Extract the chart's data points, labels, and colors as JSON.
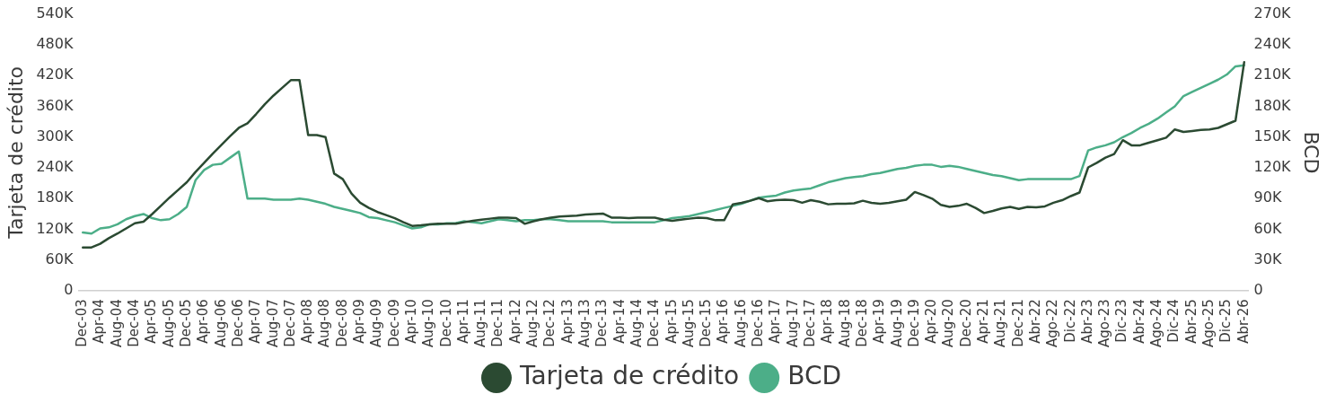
{
  "chart_data": {
    "type": "line",
    "categories": [
      "Dec-03",
      null,
      "Apr-04",
      null,
      "Aug-04",
      null,
      "Dec-04",
      null,
      "Apr-05",
      null,
      "Aug-05",
      null,
      "Dec-05",
      null,
      "Apr-06",
      null,
      "Aug-06",
      null,
      "Dec-06",
      null,
      "Apr-07",
      null,
      "Aug-07",
      null,
      "Dec-07",
      null,
      "Apr-08",
      null,
      "Aug-08",
      null,
      "Dec-08",
      null,
      "Apr-09",
      null,
      "Aug-09",
      null,
      "Dec-09",
      null,
      "Apr-10",
      null,
      "Aug-10",
      null,
      "Dec-10",
      null,
      "Apr-11",
      null,
      "Aug-11",
      null,
      "Dec-11",
      null,
      "Apr-12",
      null,
      "Aug-12",
      null,
      "Dec-12",
      null,
      "Apr-13",
      null,
      "Aug-13",
      null,
      "Dec-13",
      null,
      "Apr-14",
      null,
      "Aug-14",
      null,
      "Dec-14",
      null,
      "Apr-15",
      null,
      "Aug-15",
      null,
      "Dec-15",
      null,
      "Apr-16",
      null,
      "Aug-16",
      null,
      "Dec-16",
      null,
      "Apr-17",
      null,
      "Aug-17",
      null,
      "Dec-17",
      null,
      "Apr-18",
      null,
      "Aug-18",
      null,
      "Dec-18",
      null,
      "Apr-19",
      null,
      "Aug-19",
      null,
      "Dec-19",
      null,
      "Apr-20",
      null,
      "Aug-20",
      null,
      "Dec-20",
      null,
      "Apr-21",
      null,
      "Aug-21",
      null,
      "Dec-21",
      null,
      "Abr-22",
      null,
      "Ago-22",
      null,
      "Dic-22",
      null,
      "Abr-23",
      null,
      "Ago-23",
      null,
      "Dic-23",
      null,
      "Abr-24",
      null,
      "Ago-24",
      null,
      "Dic-24",
      null,
      "Abr-25",
      null,
      "Ago-25",
      null,
      "Dic-25",
      null,
      "Abr-26"
    ],
    "series": [
      {
        "name": "Tarjeta de crédito",
        "color": "#2b4a32",
        "axis": "y",
        "values": [
          85000,
          85000,
          92000,
          103000,
          112000,
          122000,
          132000,
          135000,
          150000,
          166000,
          182000,
          197000,
          212000,
          232000,
          250000,
          268000,
          285000,
          302000,
          318000,
          327000,
          345000,
          364000,
          381000,
          396000,
          411000,
          411000,
          304000,
          304000,
          300000,
          229000,
          218000,
          190000,
          172000,
          162000,
          154000,
          148000,
          142000,
          134000,
          127000,
          128000,
          130000,
          131000,
          131000,
          131000,
          134000,
          137000,
          139000,
          141000,
          143000,
          143000,
          142000,
          131000,
          136000,
          140000,
          143000,
          145000,
          146000,
          147000,
          149000,
          150000,
          151000,
          143000,
          143000,
          142000,
          143000,
          143000,
          143000,
          139000,
          137000,
          139000,
          141000,
          143000,
          142000,
          138000,
          138000,
          169000,
          172000,
          176000,
          181000,
          175000,
          177000,
          178000,
          177000,
          172000,
          177000,
          174000,
          169000,
          170000,
          170000,
          171000,
          176000,
          172000,
          170000,
          172000,
          175000,
          178000,
          193000,
          187000,
          180000,
          168000,
          164000,
          166000,
          170000,
          162000,
          152000,
          156000,
          161000,
          164000,
          160000,
          164000,
          163000,
          165000,
          172000,
          177000,
          185000,
          192000,
          241000,
          250000,
          260000,
          267000,
          294000,
          284000,
          284000,
          289000,
          294000,
          299000,
          315000,
          310000,
          312000,
          314000,
          315000,
          318000,
          325000,
          332000,
          446000
        ]
      },
      {
        "name": "BCD",
        "color": "#4cae88",
        "axis": "y2",
        "values": [
          57000,
          56000,
          61000,
          62000,
          65000,
          70000,
          73000,
          75000,
          71000,
          69000,
          70000,
          75000,
          82000,
          108000,
          118000,
          123000,
          124000,
          130000,
          136000,
          90000,
          90000,
          90000,
          89000,
          89000,
          89000,
          90000,
          89000,
          87000,
          85000,
          82000,
          80000,
          78000,
          76000,
          72000,
          71000,
          69000,
          67000,
          64000,
          61000,
          62000,
          65000,
          65000,
          66000,
          66000,
          68000,
          67000,
          66000,
          68000,
          70000,
          69000,
          68000,
          69000,
          69000,
          70000,
          70000,
          69000,
          68000,
          68000,
          68000,
          68000,
          68000,
          67000,
          67000,
          67000,
          67000,
          67000,
          67000,
          69000,
          71000,
          72000,
          73000,
          75000,
          77000,
          79000,
          81000,
          83000,
          85000,
          88000,
          91000,
          92000,
          93000,
          96000,
          98000,
          99000,
          100000,
          103000,
          106000,
          108000,
          110000,
          111000,
          112000,
          114000,
          115000,
          117000,
          119000,
          120000,
          122000,
          123000,
          123000,
          121000,
          122000,
          121000,
          119000,
          117000,
          115000,
          113000,
          112000,
          110000,
          108000,
          109000,
          109000,
          109000,
          109000,
          109000,
          109000,
          112000,
          137000,
          140000,
          142000,
          145000,
          150000,
          154000,
          159000,
          163000,
          168000,
          174000,
          180000,
          190000,
          194000,
          198000,
          202000,
          206000,
          211000,
          219000,
          220000
        ]
      }
    ],
    "ylabel": "Tarjeta de crédito",
    "y2label": "BCD",
    "ylim": [
      0,
      540000
    ],
    "yticks": [
      {
        "value": 0,
        "label": "0"
      },
      {
        "value": 60000,
        "label": "60K"
      },
      {
        "value": 120000,
        "label": "120K"
      },
      {
        "value": 180000,
        "label": "180K"
      },
      {
        "value": 240000,
        "label": "240K"
      },
      {
        "value": 300000,
        "label": "300K"
      },
      {
        "value": 360000,
        "label": "360K"
      },
      {
        "value": 420000,
        "label": "420K"
      },
      {
        "value": 480000,
        "label": "480K"
      },
      {
        "value": 540000,
        "label": "540K"
      }
    ],
    "y2lim": [
      0,
      270000
    ],
    "y2ticks": [
      {
        "value": 0,
        "label": "0"
      },
      {
        "value": 30000,
        "label": "30K"
      },
      {
        "value": 60000,
        "label": "60K"
      },
      {
        "value": 90000,
        "label": "90K"
      },
      {
        "value": 120000,
        "label": "120K"
      },
      {
        "value": 150000,
        "label": "150K"
      },
      {
        "value": 180000,
        "label": "180K"
      },
      {
        "value": 210000,
        "label": "210K"
      },
      {
        "value": 240000,
        "label": "240K"
      },
      {
        "value": 270000,
        "label": "270K"
      }
    ],
    "grid": false,
    "legend": "bottom",
    "marker": "none",
    "line_style": "solid"
  }
}
